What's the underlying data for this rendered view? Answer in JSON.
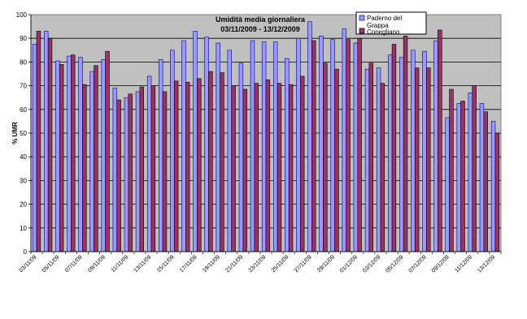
{
  "chart_data": {
    "type": "bar",
    "title": "Umidità media giornaliera",
    "subtitle": "03/11/2009 - 13/12/2009",
    "xlabel": "",
    "ylabel": "% UMR",
    "ylim": [
      0,
      100
    ],
    "yticks": [
      0,
      10,
      20,
      30,
      40,
      50,
      60,
      70,
      80,
      90,
      100
    ],
    "grid": true,
    "legend_position": "top-right",
    "colors": {
      "plot_bg": "#c0c0c0",
      "series1": "#9999ff",
      "series2": "#993366",
      "gridline": "#000000"
    },
    "categories": [
      "03/11/09",
      "04/11/09",
      "05/11/09",
      "06/11/09",
      "07/11/09",
      "08/11/09",
      "09/11/09",
      "10/11/09",
      "11/11/09",
      "12/11/09",
      "13/11/09",
      "14/11/09",
      "15/11/09",
      "16/11/09",
      "17/11/09",
      "18/11/09",
      "19/11/09",
      "20/11/09",
      "21/11/09",
      "22/11/09",
      "23/11/09",
      "24/11/09",
      "25/11/09",
      "26/11/09",
      "27/11/09",
      "28/11/09",
      "29/11/09",
      "30/11/09",
      "01/12/09",
      "02/12/09",
      "03/12/09",
      "04/12/09",
      "05/12/09",
      "06/12/09",
      "07/12/09",
      "08/12/09",
      "09/12/09",
      "10/12/09",
      "11/12/09",
      "12/12/09",
      "13/12/09"
    ],
    "tick_labels": [
      "03/11/09",
      "05/11/09",
      "07/11/09",
      "09/11/09",
      "11/11/09",
      "13/11/09",
      "15/11/09",
      "17/11/09",
      "19/11/09",
      "21/11/09",
      "23/11/09",
      "25/11/09",
      "27/11/09",
      "29/11/09",
      "01/12/09",
      "03/12/09",
      "05/12/09",
      "07/12/09",
      "09/12/09",
      "11/12/09",
      "13/12/09"
    ],
    "series": [
      {
        "name": "Paderno del Grappa",
        "values": [
          87.5,
          93,
          80.5,
          82.5,
          82,
          76,
          81,
          69,
          65,
          67.5,
          74,
          81,
          85,
          89,
          93,
          90.5,
          88,
          85,
          79.5,
          89,
          88.5,
          88.5,
          81.5,
          90,
          97,
          91,
          89.5,
          94,
          88,
          77,
          77.5,
          83,
          82,
          85,
          84.5,
          89,
          56.5,
          62.5,
          67,
          62.5,
          55
        ]
      },
      {
        "name": "Conegliano",
        "values": [
          93,
          90,
          79,
          83,
          70.5,
          78.5,
          84.5,
          64,
          66.5,
          69.5,
          70,
          67.5,
          72,
          71.5,
          73,
          76,
          75.5,
          70,
          68.5,
          71,
          72.5,
          71,
          70.5,
          74,
          89,
          79.5,
          77,
          89.5,
          90,
          79.5,
          71,
          87.5,
          91,
          77.5,
          77.5,
          93.5,
          68.5,
          63.5,
          70,
          59,
          50
        ]
      }
    ]
  }
}
